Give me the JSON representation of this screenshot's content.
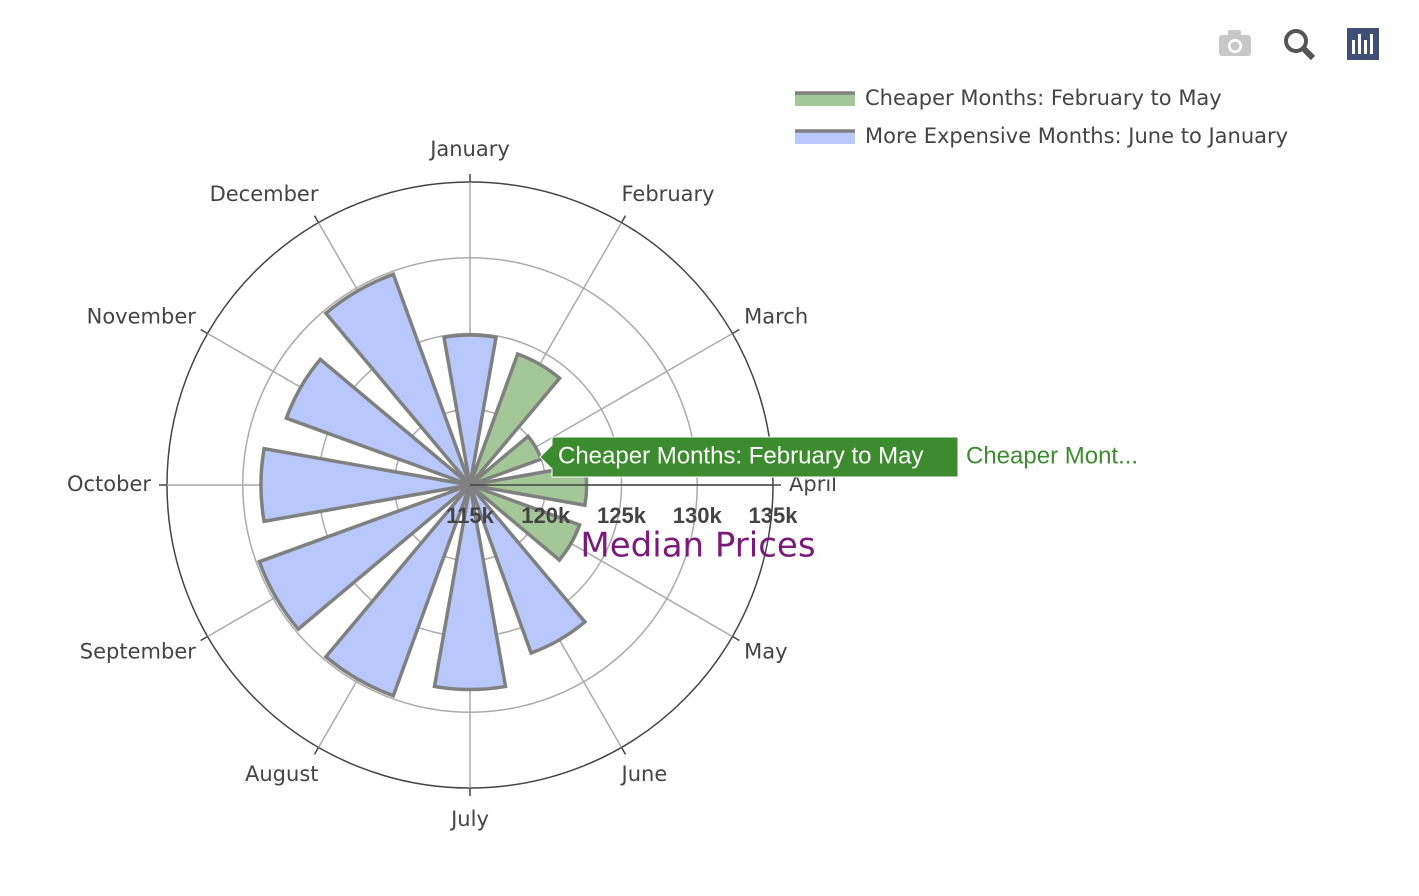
{
  "chart_data": {
    "type": "barpolar",
    "title": "Median Prices",
    "categories": [
      "January",
      "February",
      "March",
      "April",
      "May",
      "June",
      "July",
      "August",
      "September",
      "October",
      "November",
      "December"
    ],
    "series": [
      {
        "name": "Cheaper Months: February to May",
        "color": "#a3c796",
        "values": [
          null,
          124200,
          120000,
          122700,
          122700,
          null,
          null,
          null,
          null,
          null,
          null,
          null
        ]
      },
      {
        "name": "More Expensive Months: June to January",
        "color": "#b8c8fb",
        "values": [
          124900,
          null,
          null,
          null,
          null,
          126800,
          128500,
          129800,
          129800,
          128800,
          127900,
          129800
        ]
      }
    ],
    "rlim": [
      115000,
      135000
    ],
    "rticks": [
      {
        "value": 115000,
        "label": "115k"
      },
      {
        "value": 120000,
        "label": "120k"
      },
      {
        "value": 125000,
        "label": "125k"
      },
      {
        "value": 130000,
        "label": "130k"
      },
      {
        "value": 135000,
        "label": "135k"
      }
    ],
    "direction": "clockwise",
    "grid": true,
    "legend": "top-right",
    "hover": {
      "name": "Cheaper Months: February to May",
      "text": "Cheaper Mont...",
      "color": "#3d8b2f"
    }
  }
}
